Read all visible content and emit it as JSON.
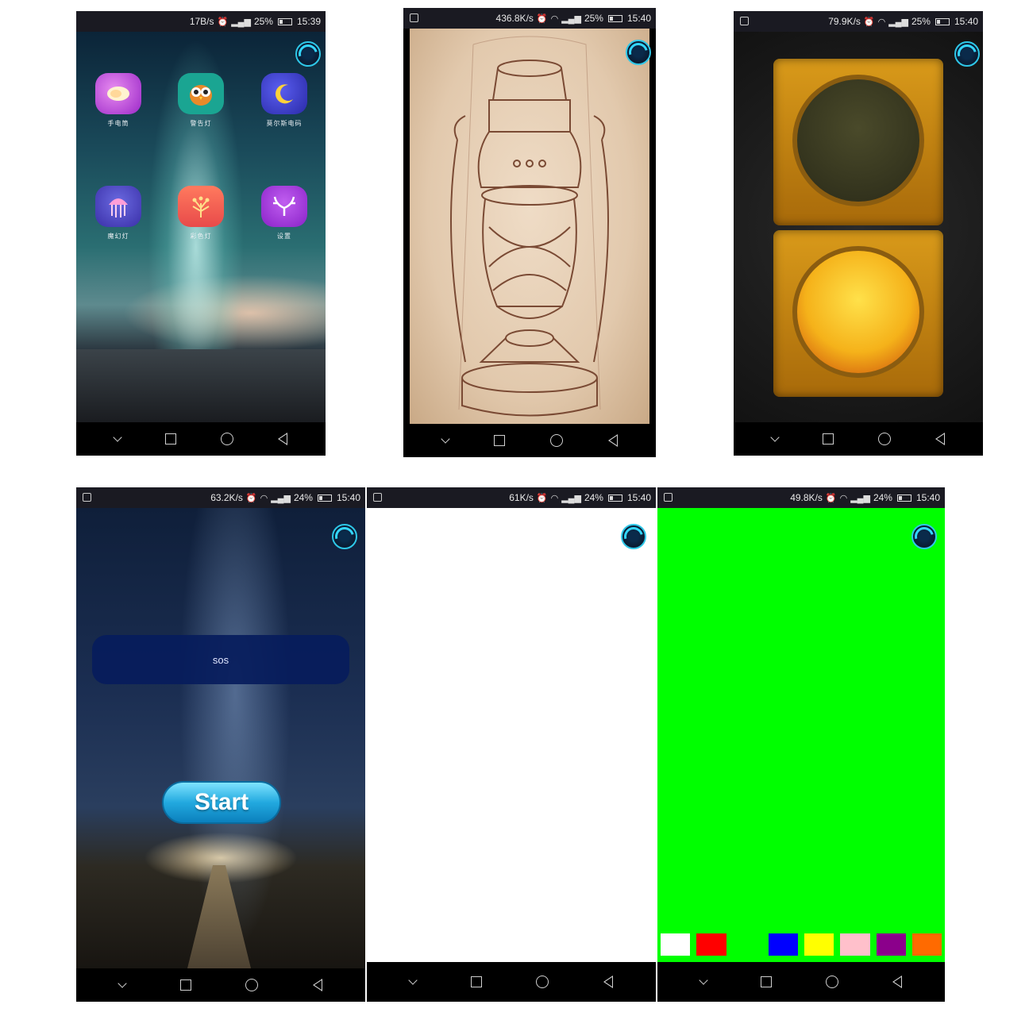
{
  "phones": [
    {
      "id": "home",
      "status": {
        "speed": "17B/s",
        "battery": "25%",
        "time": "15:39"
      },
      "apps": [
        {
          "label": "手电筒",
          "icon": "disc-icon",
          "color": "#b03ad8"
        },
        {
          "label": "警告灯",
          "icon": "owl-icon",
          "color": "#1aa592"
        },
        {
          "label": "莫尔斯电码",
          "icon": "moon-icon",
          "color": "#3a3fc8"
        },
        {
          "label": "魔幻灯",
          "icon": "jellyfish-icon",
          "color": "#3f4bc0"
        },
        {
          "label": "彩色灯",
          "icon": "firework-icon",
          "color": "#f0584e"
        },
        {
          "label": "设置",
          "icon": "antler-icon",
          "color": "#9b2fd6"
        }
      ]
    },
    {
      "id": "lantern",
      "status": {
        "speed": "436.8K/s",
        "battery": "25%",
        "time": "15:40"
      }
    },
    {
      "id": "traffic",
      "status": {
        "speed": "79.9K/s",
        "battery": "25%",
        "time": "15:40"
      }
    },
    {
      "id": "sos",
      "status": {
        "speed": "63.2K/s",
        "battery": "24%",
        "time": "15:40"
      },
      "sos_label": "sos",
      "start_label": "Start"
    },
    {
      "id": "white",
      "status": {
        "speed": "61K/s",
        "battery": "24%",
        "time": "15:40"
      }
    },
    {
      "id": "green",
      "status": {
        "speed": "49.8K/s",
        "battery": "24%",
        "time": "15:40"
      },
      "swatches": [
        "#ffffff",
        "#ff0000",
        "#00ff00",
        "#0000ff",
        "#ffff00",
        "#ffc0cb",
        "#8b008b",
        "#ff6a00"
      ]
    }
  ]
}
